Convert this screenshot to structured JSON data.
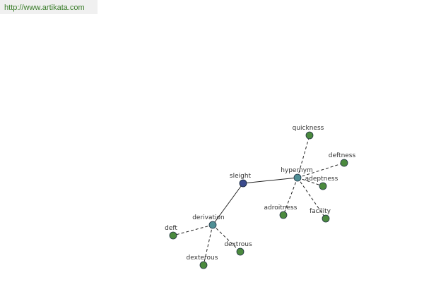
{
  "header": {
    "url": "http://www.artikata.com"
  },
  "nodes": [
    {
      "label": "sleight"
    },
    {
      "label": "hypernym"
    },
    {
      "label": "derivation"
    },
    {
      "label": "quickness"
    },
    {
      "label": "deftness"
    },
    {
      "label": "adeptness"
    },
    {
      "label": "facility"
    },
    {
      "label": "adroitness"
    },
    {
      "label": "deft"
    },
    {
      "label": "dextrous"
    },
    {
      "label": "dexterous"
    }
  ]
}
